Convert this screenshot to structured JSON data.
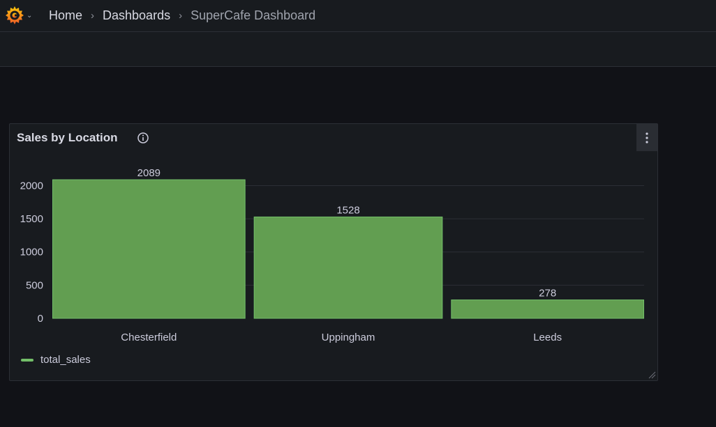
{
  "breadcrumb": {
    "home": "Home",
    "dashboards": "Dashboards",
    "current": "SuperCafe Dashboard",
    "separator": "›"
  },
  "icons": {
    "logo": "grafana-logo-icon",
    "logo_menu": "chevron-down-icon",
    "info": "info-icon",
    "panel_menu": "kebab-menu-icon",
    "resize": "resize-handle-icon"
  },
  "panel": {
    "title": "Sales by Location",
    "legend": [
      {
        "name": "total_sales",
        "color": "#73bf69"
      }
    ]
  },
  "colors": {
    "bar_fill": "#629e51",
    "bar_stroke": "#73bf69",
    "background": "#111217",
    "panel": "#181b1f",
    "grid": "#2c2f36"
  },
  "chart_data": {
    "type": "bar",
    "title": "Sales by Location",
    "categories": [
      "Chesterfield",
      "Uppingham",
      "Leeds"
    ],
    "series": [
      {
        "name": "total_sales",
        "values": [
          2089,
          1528,
          278
        ]
      }
    ],
    "yticks": [
      0,
      500,
      1000,
      1500,
      2000
    ],
    "ylim": [
      0,
      2089
    ],
    "data_labels": true,
    "grid": true,
    "legend_position": "bottom-left"
  }
}
